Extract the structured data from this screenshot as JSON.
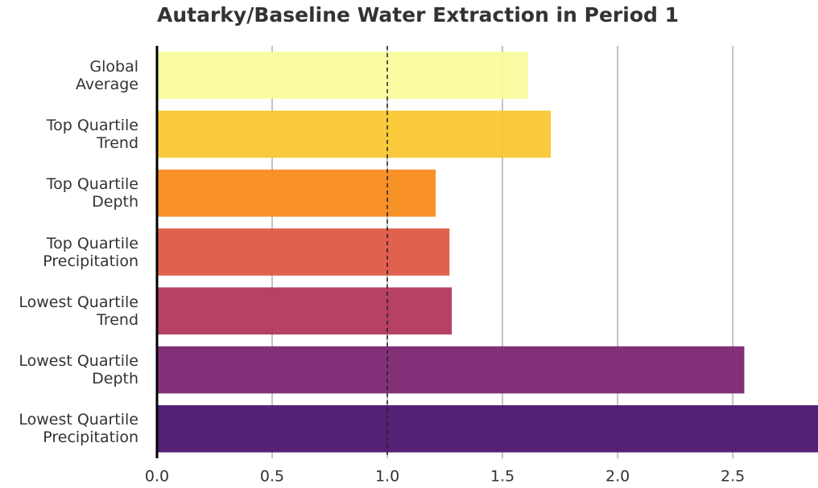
{
  "chart_data": {
    "type": "barh",
    "title": "Autarky/Baseline Water Extraction in Period 1",
    "categories": [
      "Global\nAverage",
      "Top Quartile\nTrend",
      "Top Quartile\nDepth",
      "Top Quartile\nPrecipitation",
      "Lowest Quartile\nTrend",
      "Lowest Quartile\nDepth",
      "Lowest Quartile\nPrecipitation"
    ],
    "values": [
      1.61,
      1.71,
      1.21,
      1.27,
      1.28,
      2.55,
      2.87
    ],
    "colors": [
      "#f9fc9e",
      "#f8c731",
      "#f78b1c",
      "#de5843",
      "#b2375d",
      "#7b2672",
      "#4c156d"
    ],
    "xlim": [
      0,
      2.87
    ],
    "xticks": [
      {
        "value": 0,
        "label": "0.0"
      },
      0.5,
      {
        "value": 1,
        "label": "1.0"
      },
      1.5,
      {
        "value": 2,
        "label": "2.0"
      },
      2.5
    ],
    "reference_line": 1,
    "grid": true
  }
}
